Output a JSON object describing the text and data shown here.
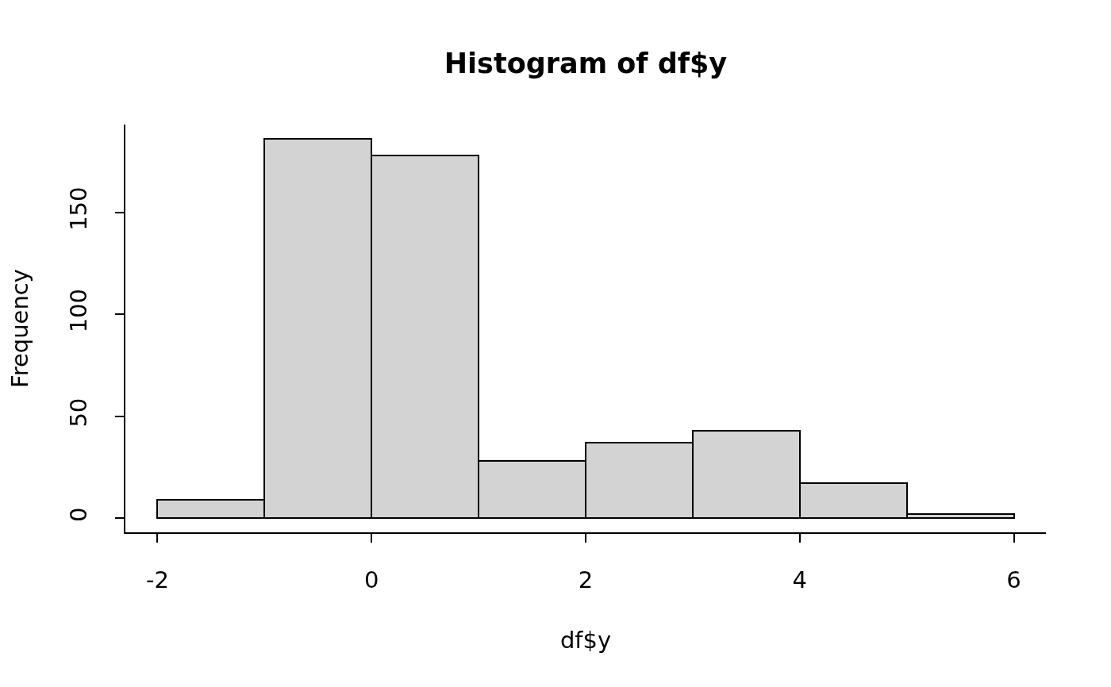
{
  "chart_data": {
    "type": "histogram",
    "title": "Histogram of df$y",
    "xlabel": "df$y",
    "ylabel": "Frequency",
    "bins": [
      -2,
      -1,
      0,
      1,
      2,
      3,
      4,
      5,
      6
    ],
    "values": [
      9,
      186,
      178,
      28,
      37,
      43,
      17,
      2
    ],
    "color": "#d3d3d3",
    "xlim": [
      -2.3,
      6.3
    ],
    "ylim": [
      -7,
      193
    ],
    "xticks": [
      -2,
      0,
      2,
      4,
      6
    ],
    "yticks": [
      0,
      50,
      100,
      150
    ]
  }
}
